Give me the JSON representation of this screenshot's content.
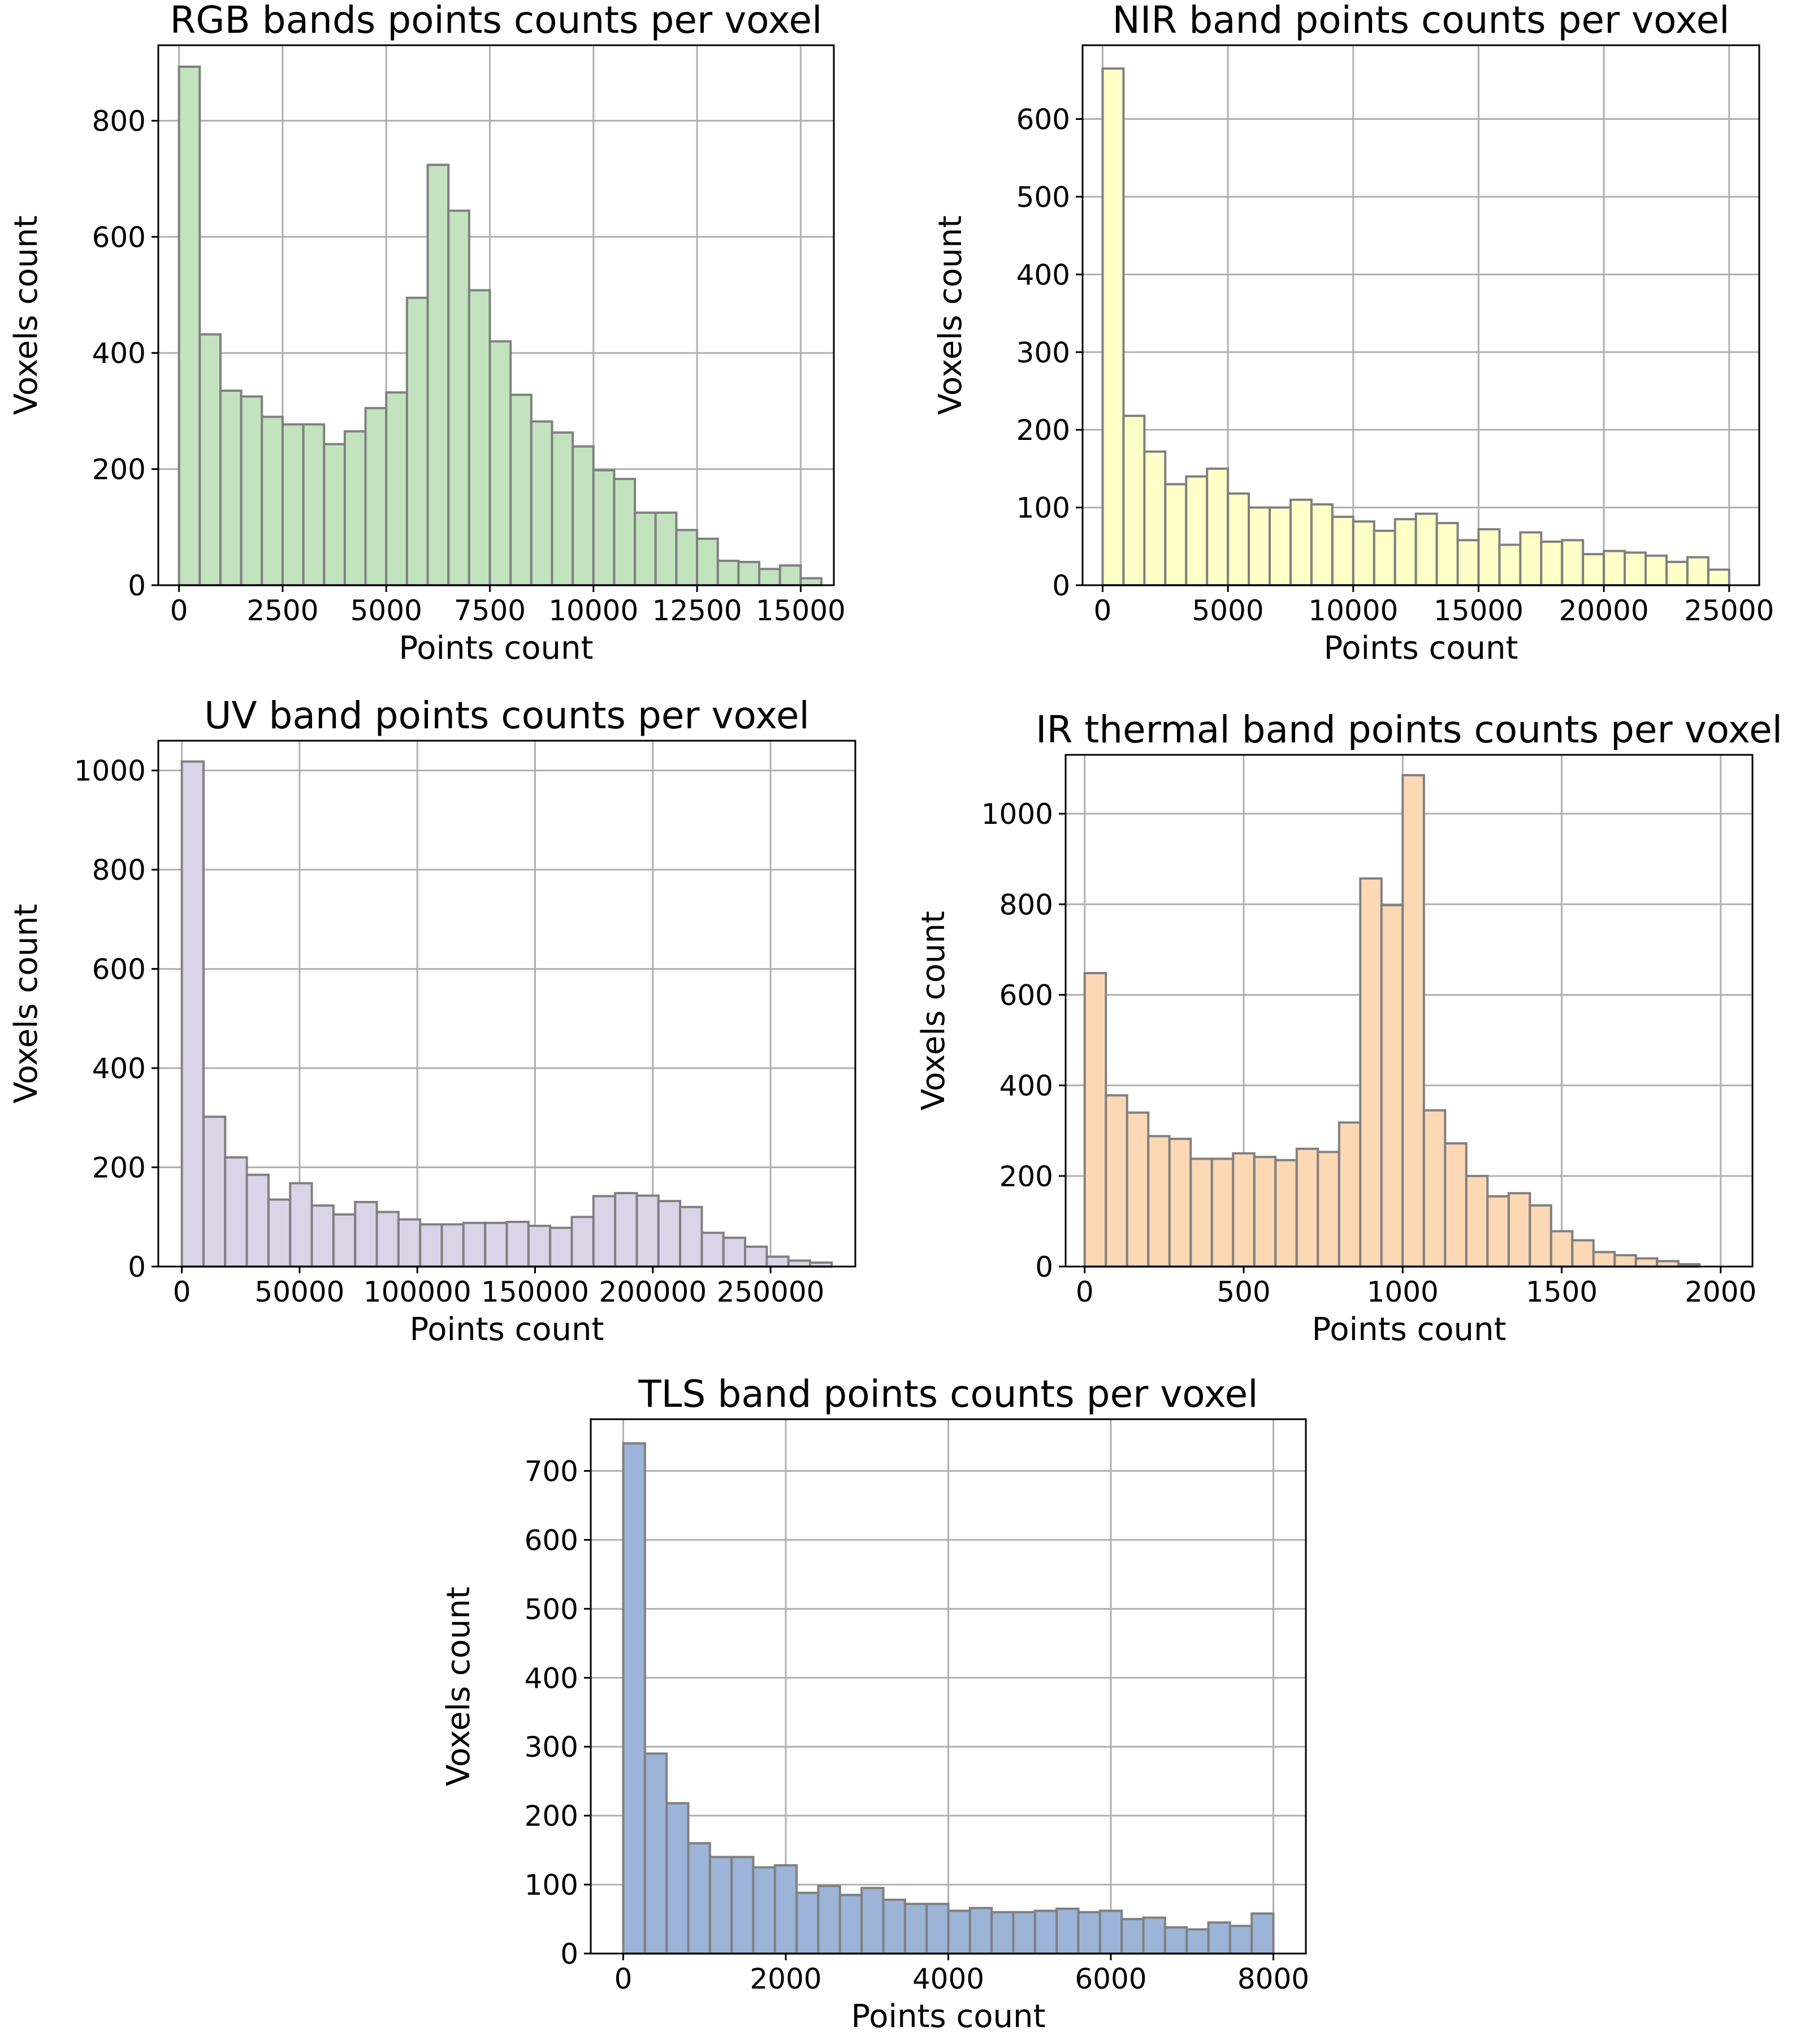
{
  "chart_data": [
    {
      "type": "bar",
      "title": "RGB bands points counts per voxel",
      "xlabel": "Points count",
      "ylabel": "Voxels count",
      "color": "#c3e3bf",
      "xlim": [
        -500,
        15800
      ],
      "ylim": [
        0,
        930
      ],
      "xticks": [
        0,
        2500,
        5000,
        7500,
        10000,
        12500,
        15000
      ],
      "yticks": [
        0,
        200,
        400,
        600,
        800
      ],
      "grid": true,
      "bins_x0": 0,
      "bin_width": 500,
      "values": [
        893,
        432,
        335,
        325,
        290,
        277,
        277,
        243,
        265,
        305,
        332,
        495,
        724,
        645,
        508,
        420,
        328,
        282,
        263,
        239,
        198,
        183,
        125,
        125,
        95,
        80,
        42,
        40,
        28,
        34,
        12
      ]
    },
    {
      "type": "bar",
      "title": "NIR band points counts per voxel",
      "xlabel": "Points count",
      "ylabel": "Voxels count",
      "color": "#ffffc8",
      "xlim": [
        -800,
        26200
      ],
      "ylim": [
        0,
        695
      ],
      "xticks": [
        0,
        5000,
        10000,
        15000,
        20000,
        25000
      ],
      "yticks": [
        0,
        100,
        200,
        300,
        400,
        500,
        600
      ],
      "grid": true,
      "bins_x0": 0,
      "bin_width": 833.33,
      "values": [
        665,
        218,
        172,
        130,
        140,
        150,
        118,
        100,
        100,
        110,
        104,
        88,
        82,
        70,
        85,
        92,
        80,
        58,
        72,
        52,
        68,
        56,
        58,
        40,
        44,
        42,
        38,
        30,
        36,
        20
      ]
    },
    {
      "type": "bar",
      "title": "UV band points counts per voxel",
      "xlabel": "Points count",
      "ylabel": "Voxels count",
      "color": "#d9d4e8",
      "xlim": [
        -10000,
        286000
      ],
      "ylim": [
        0,
        1060
      ],
      "xticks": [
        0,
        50000,
        100000,
        150000,
        200000,
        250000
      ],
      "yticks": [
        0,
        200,
        400,
        600,
        800,
        1000
      ],
      "grid": true,
      "bins_x0": 0,
      "bin_width": 9200,
      "values": [
        1018,
        302,
        220,
        185,
        135,
        168,
        123,
        105,
        130,
        110,
        95,
        85,
        85,
        88,
        88,
        90,
        82,
        78,
        100,
        142,
        148,
        143,
        132,
        120,
        68,
        58,
        40,
        20,
        12,
        8
      ]
    },
    {
      "type": "bar",
      "title": "IR thermal band points counts per voxel",
      "xlabel": "Points count",
      "ylabel": "Voxels count",
      "color": "#fdd8b5",
      "xlim": [
        -60,
        2100
      ],
      "ylim": [
        0,
        1130
      ],
      "xticks": [
        0,
        500,
        1000,
        1500,
        2000
      ],
      "yticks": [
        0,
        200,
        400,
        600,
        800,
        1000
      ],
      "grid": true,
      "bins_x0": 0,
      "bin_width": 66.67,
      "values": [
        648,
        378,
        340,
        288,
        282,
        238,
        238,
        250,
        242,
        235,
        260,
        253,
        318,
        857,
        798,
        1085,
        345,
        272,
        200,
        155,
        162,
        135,
        78,
        58,
        32,
        25,
        18,
        12,
        5,
        0
      ]
    },
    {
      "type": "bar",
      "title": "TLS band points counts per voxel",
      "xlabel": "Points count",
      "ylabel": "Voxels count",
      "color": "#9cb4d8",
      "xlim": [
        -400,
        8400
      ],
      "ylim": [
        0,
        775
      ],
      "xticks": [
        0,
        2000,
        4000,
        6000,
        8000
      ],
      "yticks": [
        0,
        100,
        200,
        300,
        400,
        500,
        600,
        700
      ],
      "grid": true,
      "bins_x0": 0,
      "bin_width": 266.67,
      "values": [
        740,
        290,
        218,
        160,
        140,
        140,
        125,
        128,
        88,
        98,
        85,
        95,
        78,
        72,
        72,
        62,
        66,
        60,
        60,
        62,
        65,
        60,
        62,
        50,
        52,
        38,
        35,
        45,
        40,
        58
      ]
    }
  ]
}
